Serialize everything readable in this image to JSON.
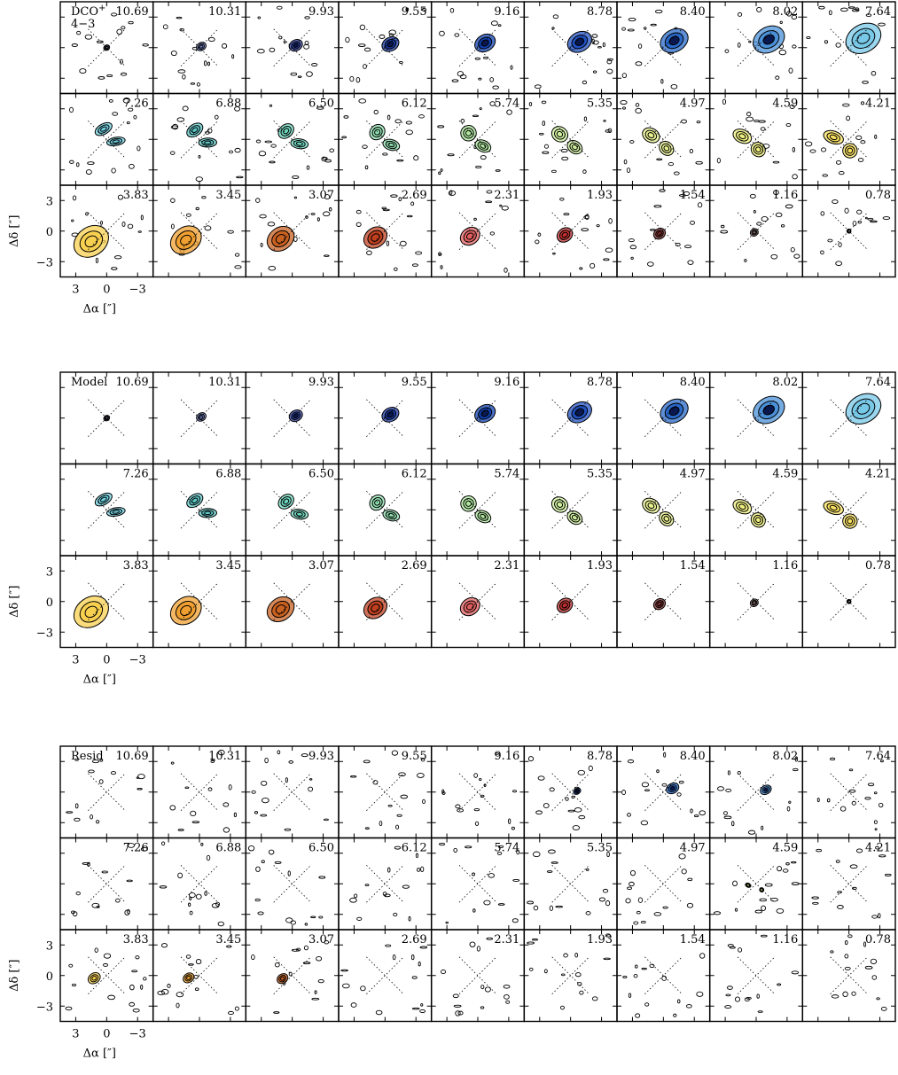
{
  "blocks": [
    {
      "label": "DCO",
      "label_sup": "+",
      "label_line2": "4−3"
    },
    {
      "label": "Model"
    },
    {
      "label": "Resid"
    }
  ],
  "channels": [
    "10.69",
    "10.31",
    "9.93",
    "9.55",
    "9.16",
    "8.78",
    "8.40",
    "8.02",
    "7.64",
    "7.26",
    "6.88",
    "6.50",
    "6.12",
    "5.74",
    "5.35",
    "4.97",
    "4.59",
    "4.21",
    "3.83",
    "3.45",
    "3.07",
    "2.69",
    "2.31",
    "1.93",
    "1.54",
    "1.16",
    "0.78"
  ],
  "axes": {
    "xlabel": "Δα [″]",
    "ylabel": "Δδ [″]",
    "xlim": [
      4.5,
      -4.5
    ],
    "ylim": [
      -4.5,
      4.5
    ],
    "xticks": [
      3,
      0,
      {
        "value": -3,
        "label": "−3"
      }
    ],
    "yticks": [
      3,
      0,
      {
        "value": -3,
        "label": "−3"
      }
    ]
  }
}
